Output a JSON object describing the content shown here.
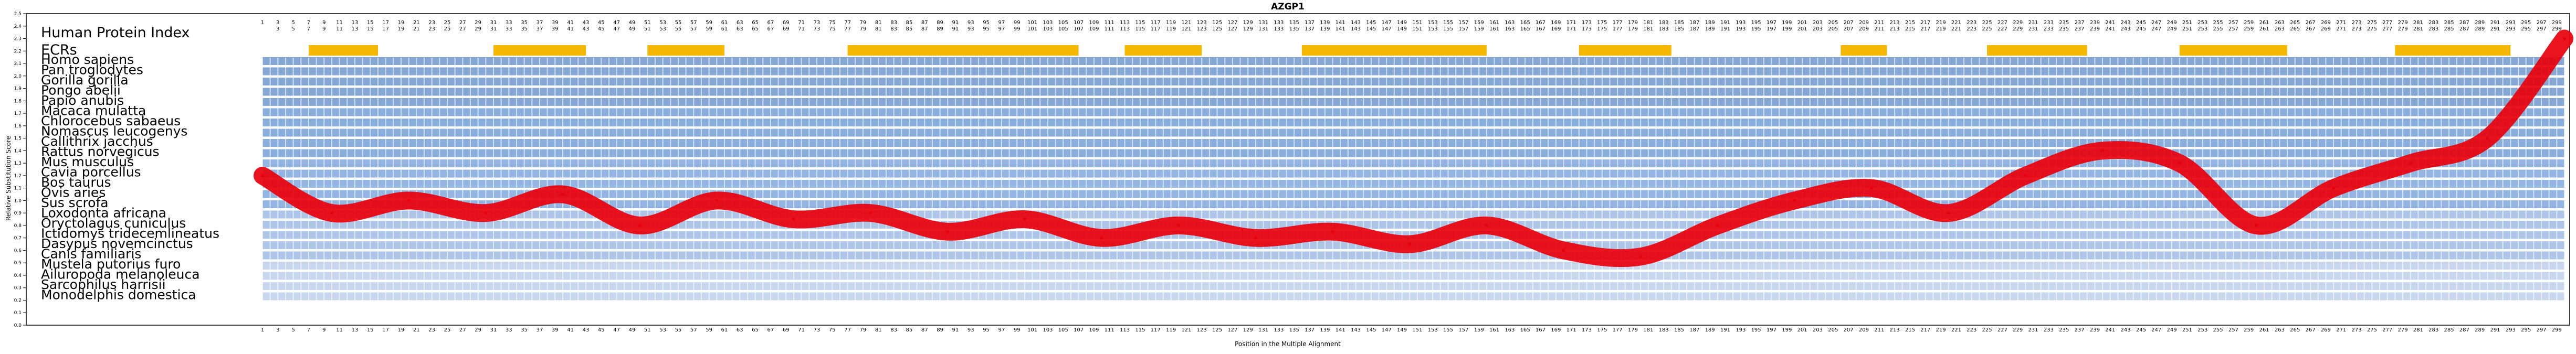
{
  "title": "AZGP1",
  "chart_data": {
    "type": "line",
    "title": "AZGP1",
    "xlabel": "Position in the Multiple Alignment",
    "ylabel": "Relative Substitution Score",
    "ylim": [
      0,
      2.5
    ],
    "yticks": [
      0,
      0.1,
      0.2,
      0.3,
      0.4,
      0.5,
      0.6,
      0.7,
      0.8,
      0.9,
      1.0,
      1.1,
      1.2,
      1.3,
      1.4,
      1.5,
      1.6,
      1.7,
      1.8,
      1.9,
      2.0,
      2.1,
      2.2,
      2.3,
      2.4,
      2.5
    ],
    "xlim": [
      1,
      300
    ],
    "top_labels": [
      "Human Protein Index",
      "ECRs"
    ],
    "species": [
      "Homo sapiens",
      "Pan troglodytes",
      "Gorilla gorilla",
      "Pongo abelii",
      "Papio anubis",
      "Macaca mulatta",
      "Chlorocebus sabaeus",
      "Nomascus leucogenys",
      "Callithrix jacchus",
      "Rattus norvegicus",
      "Mus musculus",
      "Cavia porcellus",
      "Bos taurus",
      "Ovis aries",
      "Sus scrofa",
      "Loxodonta africana",
      "Oryctolagus cuniculus",
      "Ictidomys tridecemlineatus",
      "Dasypus novemcinctus",
      "Canis familiaris",
      "Mustela putorius furo",
      "Ailuropoda melanoleuca",
      "Sarcophilus harrisii",
      "Monodelphis domestica"
    ],
    "ecr_regions": [
      [
        7,
        16
      ],
      [
        31,
        43
      ],
      [
        51,
        61
      ],
      [
        77,
        107
      ],
      [
        113,
        123
      ],
      [
        136,
        160
      ],
      [
        172,
        184
      ],
      [
        206,
        212
      ],
      [
        225,
        238
      ],
      [
        250,
        264
      ],
      [
        278,
        293
      ]
    ],
    "series": [
      {
        "color": "#e8000b",
        "x": [
          1,
          10,
          20,
          30,
          40,
          50,
          60,
          70,
          80,
          90,
          100,
          110,
          120,
          130,
          140,
          150,
          160,
          170,
          180,
          190,
          200,
          210,
          220,
          230,
          240,
          250,
          260,
          270,
          280,
          290,
          300
        ],
        "values": [
          1.2,
          0.9,
          1.0,
          0.9,
          1.05,
          0.8,
          1.0,
          0.85,
          0.9,
          0.75,
          0.85,
          0.7,
          0.8,
          0.7,
          0.75,
          0.65,
          0.8,
          0.6,
          0.55,
          0.8,
          1.0,
          1.1,
          0.9,
          1.2,
          1.4,
          1.3,
          0.8,
          1.1,
          1.3,
          1.5,
          2.3
        ]
      }
    ]
  }
}
